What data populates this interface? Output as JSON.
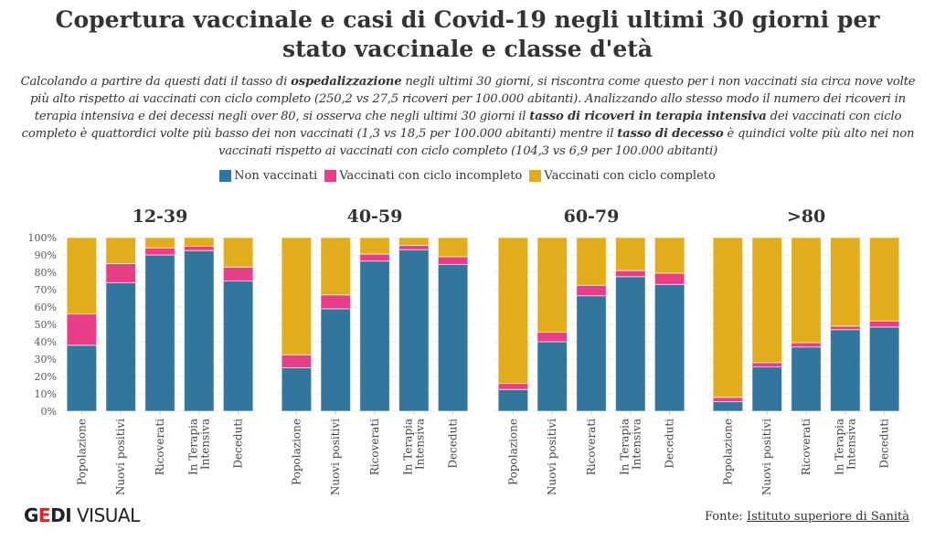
{
  "title": "Copertura vaccinale e casi di Covid-19 negli ultimi 30 giorni per stato vaccinale e classe d'età",
  "subtitle": {
    "parts": [
      {
        "text": "Calcolando a partire da questi dati il tasso di ",
        "bold": false
      },
      {
        "text": "ospedalizzazione",
        "bold": true
      },
      {
        "text": " negli ultimi 30 giorni, si riscontra come questo per i non vaccinati sia circa nove volte più alto rispetto ai vaccinati con ciclo completo (250,2 vs 27,5 ricoveri per 100.000 abitanti). Analizzando allo stesso modo il numero dei ricoveri in terapia intensiva e dei decessi negli over 80, si osserva che negli ultimi 30 giorni il ",
        "bold": false
      },
      {
        "text": "tasso di ricoveri in terapia intensiva",
        "bold": true
      },
      {
        "text": " dei vaccinati con ciclo completo è quattordici volte più basso dei non vaccinati (1,3 vs 18,5 per 100.000 abitanti) mentre il ",
        "bold": false
      },
      {
        "text": "tasso di decesso",
        "bold": true
      },
      {
        "text": " è quindici volte più alto nei non vaccinati rispetto ai vaccinati con ciclo completo (104,3 vs 6,9 per 100.000 abitanti)",
        "bold": false
      }
    ]
  },
  "footer": {
    "logo_text": "GEDI VISUAL",
    "source_label": "Fonte: ",
    "source_link": "Istituto superiore di Sanità"
  },
  "chart_data": {
    "type": "bar",
    "stacked": true,
    "legend_position": "top",
    "grid": true,
    "ylim": [
      0,
      100
    ],
    "yticks": [
      "0%",
      "10%",
      "20%",
      "30%",
      "40%",
      "50%",
      "60%",
      "70%",
      "80%",
      "90%",
      "100%"
    ],
    "categories": [
      "Popolazione",
      "Nuovi positivi",
      "Ricoverati",
      "In Terapia Intensiva",
      "Deceduti"
    ],
    "series_meta": [
      {
        "name": "Non vaccinati",
        "color": "#33769d"
      },
      {
        "name": "Vaccinati con ciclo incompleto",
        "color": "#e83e8a"
      },
      {
        "name": "Vaccinati con ciclo completo",
        "color": "#e2ad1c"
      }
    ],
    "panels": [
      {
        "title": "12-39",
        "series": [
          [
            38,
            74,
            90,
            92.5,
            75
          ],
          [
            18,
            11,
            4,
            2.5,
            8
          ],
          [
            44,
            15,
            6,
            5,
            17
          ]
        ]
      },
      {
        "title": "40-59",
        "series": [
          [
            25,
            59,
            86.5,
            93,
            84.5
          ],
          [
            7.5,
            8,
            4,
            2.5,
            4.5
          ],
          [
            67.5,
            33,
            9.5,
            4.5,
            11
          ]
        ]
      },
      {
        "title": "60-79",
        "series": [
          [
            12.5,
            40,
            66.5,
            77.5,
            73
          ],
          [
            3.5,
            5.5,
            6,
            3.5,
            6.5
          ],
          [
            84,
            54.5,
            27.5,
            19,
            20.5
          ]
        ]
      },
      {
        "title": ">80",
        "series": [
          [
            5.5,
            25.5,
            37,
            47,
            48.5
          ],
          [
            2.5,
            2.5,
            2.5,
            2,
            3.5
          ],
          [
            92,
            72,
            60.5,
            51,
            48
          ]
        ]
      }
    ]
  }
}
